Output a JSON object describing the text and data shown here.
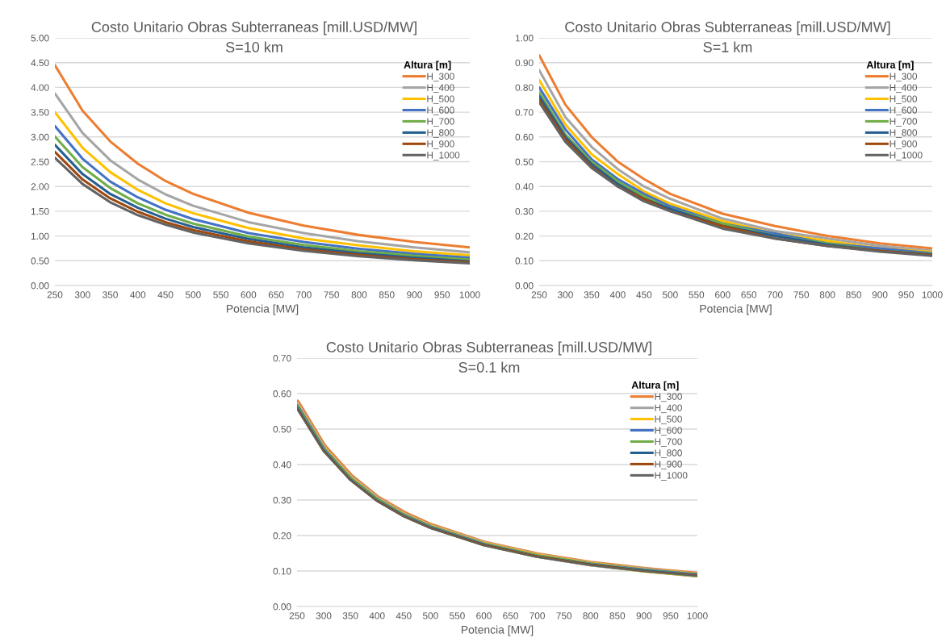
{
  "chart_data": [
    {
      "type": "line",
      "title": "Costo Unitario Obras Subterraneas [mill.USD/MW]",
      "subtitle": "S=10 km",
      "xlabel": "Potencia [MW]",
      "legend_title": "Altura [m]",
      "legend": "top right",
      "grid": "y",
      "marker": "none",
      "line_style": "solid",
      "x": [
        250,
        300,
        350,
        400,
        450,
        500,
        600,
        700,
        800,
        900,
        1000
      ],
      "xlim": [
        250,
        1000
      ],
      "xticks": [
        250,
        300,
        350,
        400,
        450,
        500,
        550,
        600,
        650,
        700,
        750,
        800,
        850,
        900,
        950,
        1000
      ],
      "ylim": [
        0,
        5
      ],
      "yticks": [
        {
          "value": 0,
          "label": "0.00"
        },
        {
          "value": 0.5,
          "label": "0.50"
        },
        {
          "value": 1,
          "label": "1.00"
        },
        {
          "value": 1.5,
          "label": "1.50"
        },
        {
          "value": 2,
          "label": "2.00"
        },
        {
          "value": 2.5,
          "label": "2.50"
        },
        {
          "value": 3,
          "label": "3.00"
        },
        {
          "value": 3.5,
          "label": "3.50"
        },
        {
          "value": 4,
          "label": "4.00"
        },
        {
          "value": 4.5,
          "label": "4.50"
        },
        {
          "value": 5,
          "label": "5.00"
        }
      ],
      "series": [
        {
          "name": "H_300",
          "color": "#ed7d31",
          "values": [
            4.45,
            3.53,
            2.91,
            2.46,
            2.11,
            1.85,
            1.47,
            1.21,
            1.02,
            0.88,
            0.77
          ]
        },
        {
          "name": "H_400",
          "color": "#a5a5a5",
          "values": [
            3.88,
            3.08,
            2.53,
            2.14,
            1.84,
            1.61,
            1.28,
            1.06,
            0.89,
            0.77,
            0.67
          ]
        },
        {
          "name": "H_500",
          "color": "#ffc000",
          "values": [
            3.5,
            2.78,
            2.29,
            1.93,
            1.66,
            1.46,
            1.16,
            0.95,
            0.81,
            0.69,
            0.61
          ]
        },
        {
          "name": "H_600",
          "color": "#4472c4",
          "values": [
            3.22,
            2.56,
            2.1,
            1.78,
            1.53,
            1.34,
            1.06,
            0.88,
            0.74,
            0.64,
            0.56
          ]
        },
        {
          "name": "H_700",
          "color": "#70ad47",
          "values": [
            3.01,
            2.39,
            1.97,
            1.66,
            1.43,
            1.25,
            0.99,
            0.82,
            0.69,
            0.6,
            0.52
          ]
        },
        {
          "name": "H_800",
          "color": "#255e91",
          "values": [
            2.84,
            2.25,
            1.85,
            1.57,
            1.35,
            1.18,
            0.94,
            0.77,
            0.65,
            0.56,
            0.49
          ]
        },
        {
          "name": "H_900",
          "color": "#9e480e",
          "values": [
            2.7,
            2.14,
            1.76,
            1.49,
            1.28,
            1.12,
            0.89,
            0.73,
            0.62,
            0.53,
            0.47
          ]
        },
        {
          "name": "H_1000",
          "color": "#636363",
          "values": [
            2.58,
            2.05,
            1.68,
            1.42,
            1.23,
            1.07,
            0.85,
            0.7,
            0.59,
            0.51,
            0.45
          ]
        }
      ]
    },
    {
      "type": "line",
      "title": "Costo Unitario Obras Subterraneas [mill.USD/MW]",
      "subtitle": "S=1 km",
      "xlabel": "Potencia [MW]",
      "legend_title": "Altura [m]",
      "legend": "top right",
      "grid": "y",
      "marker": "none",
      "line_style": "solid",
      "x": [
        250,
        300,
        350,
        400,
        450,
        500,
        600,
        700,
        800,
        900,
        1000
      ],
      "xlim": [
        250,
        1000
      ],
      "xticks": [
        250,
        300,
        350,
        400,
        450,
        500,
        550,
        600,
        650,
        700,
        750,
        800,
        850,
        900,
        950,
        1000
      ],
      "ylim": [
        0,
        1
      ],
      "yticks": [
        {
          "value": 0,
          "label": "0.00"
        },
        {
          "value": 0.1,
          "label": "0.10"
        },
        {
          "value": 0.2,
          "label": "0.20"
        },
        {
          "value": 0.3,
          "label": "0.30"
        },
        {
          "value": 0.4,
          "label": "0.40"
        },
        {
          "value": 0.5,
          "label": "0.50"
        },
        {
          "value": 0.6,
          "label": "0.60"
        },
        {
          "value": 0.7,
          "label": "0.70"
        },
        {
          "value": 0.8,
          "label": "0.80"
        },
        {
          "value": 0.9,
          "label": "0.90"
        },
        {
          "value": 1,
          "label": "1.00"
        }
      ],
      "series": [
        {
          "name": "H_300",
          "color": "#ed7d31",
          "values": [
            0.93,
            0.73,
            0.6,
            0.5,
            0.43,
            0.37,
            0.29,
            0.24,
            0.2,
            0.17,
            0.15
          ]
        },
        {
          "name": "H_400",
          "color": "#a5a5a5",
          "values": [
            0.87,
            0.68,
            0.56,
            0.47,
            0.4,
            0.35,
            0.27,
            0.22,
            0.19,
            0.16,
            0.14
          ]
        },
        {
          "name": "H_500",
          "color": "#ffc000",
          "values": [
            0.83,
            0.65,
            0.53,
            0.45,
            0.38,
            0.33,
            0.26,
            0.21,
            0.18,
            0.15,
            0.135
          ]
        },
        {
          "name": "H_600",
          "color": "#4472c4",
          "values": [
            0.8,
            0.63,
            0.51,
            0.43,
            0.37,
            0.32,
            0.25,
            0.21,
            0.17,
            0.15,
            0.13
          ]
        },
        {
          "name": "H_700",
          "color": "#70ad47",
          "values": [
            0.78,
            0.61,
            0.5,
            0.42,
            0.36,
            0.31,
            0.25,
            0.2,
            0.17,
            0.14,
            0.128
          ]
        },
        {
          "name": "H_800",
          "color": "#255e91",
          "values": [
            0.765,
            0.6,
            0.49,
            0.41,
            0.35,
            0.31,
            0.24,
            0.2,
            0.165,
            0.14,
            0.125
          ]
        },
        {
          "name": "H_900",
          "color": "#9e480e",
          "values": [
            0.75,
            0.59,
            0.48,
            0.4,
            0.35,
            0.3,
            0.24,
            0.19,
            0.16,
            0.14,
            0.122
          ]
        },
        {
          "name": "H_1000",
          "color": "#636363",
          "values": [
            0.74,
            0.58,
            0.475,
            0.4,
            0.34,
            0.3,
            0.23,
            0.19,
            0.16,
            0.137,
            0.12
          ]
        }
      ]
    },
    {
      "type": "line",
      "title": "Costo Unitario Obras Subterraneas [mill.USD/MW]",
      "subtitle": "S=0.1 km",
      "xlabel": "Potencia [MW]",
      "legend_title": "Altura [m]",
      "legend": "top right",
      "grid": "y",
      "marker": "none",
      "line_style": "solid",
      "x": [
        250,
        300,
        350,
        400,
        450,
        500,
        600,
        700,
        800,
        900,
        1000
      ],
      "xlim": [
        250,
        1000
      ],
      "xticks": [
        250,
        300,
        350,
        400,
        450,
        500,
        550,
        600,
        650,
        700,
        750,
        800,
        850,
        900,
        950,
        1000
      ],
      "ylim": [
        0,
        0.7
      ],
      "yticks": [
        {
          "value": 0,
          "label": "0.00"
        },
        {
          "value": 0.1,
          "label": "0.10"
        },
        {
          "value": 0.2,
          "label": "0.20"
        },
        {
          "value": 0.3,
          "label": "0.30"
        },
        {
          "value": 0.4,
          "label": "0.40"
        },
        {
          "value": 0.5,
          "label": "0.50"
        },
        {
          "value": 0.6,
          "label": "0.60"
        },
        {
          "value": 0.7,
          "label": "0.70"
        }
      ],
      "series": [
        {
          "name": "H_300",
          "color": "#ed7d31",
          "values": [
            0.575,
            0.451,
            0.367,
            0.306,
            0.262,
            0.228,
            0.178,
            0.145,
            0.121,
            0.104,
            0.09
          ]
        },
        {
          "name": "H_400",
          "color": "#a5a5a5",
          "values": [
            0.57,
            0.447,
            0.364,
            0.304,
            0.259,
            0.226,
            0.177,
            0.144,
            0.12,
            0.103,
            0.089
          ]
        },
        {
          "name": "H_500",
          "color": "#ffc000",
          "values": [
            0.567,
            0.445,
            0.362,
            0.302,
            0.258,
            0.225,
            0.176,
            0.143,
            0.12,
            0.102,
            0.089
          ]
        },
        {
          "name": "H_600",
          "color": "#4472c4",
          "values": [
            0.565,
            0.443,
            0.36,
            0.301,
            0.257,
            0.224,
            0.175,
            0.142,
            0.119,
            0.102,
            0.089
          ]
        },
        {
          "name": "H_700",
          "color": "#70ad47",
          "values": [
            0.562,
            0.441,
            0.359,
            0.3,
            0.256,
            0.223,
            0.174,
            0.142,
            0.119,
            0.101,
            0.088
          ]
        },
        {
          "name": "H_800",
          "color": "#255e91",
          "values": [
            0.56,
            0.439,
            0.357,
            0.298,
            0.255,
            0.222,
            0.174,
            0.141,
            0.118,
            0.101,
            0.088
          ]
        },
        {
          "name": "H_900",
          "color": "#9e480e",
          "values": [
            0.558,
            0.437,
            0.356,
            0.297,
            0.254,
            0.221,
            0.173,
            0.141,
            0.118,
            0.1,
            0.088
          ]
        },
        {
          "name": "H_1000",
          "color": "#636363",
          "values": [
            0.556,
            0.436,
            0.355,
            0.296,
            0.253,
            0.22,
            0.172,
            0.14,
            0.117,
            0.1,
            0.087
          ]
        }
      ]
    }
  ]
}
